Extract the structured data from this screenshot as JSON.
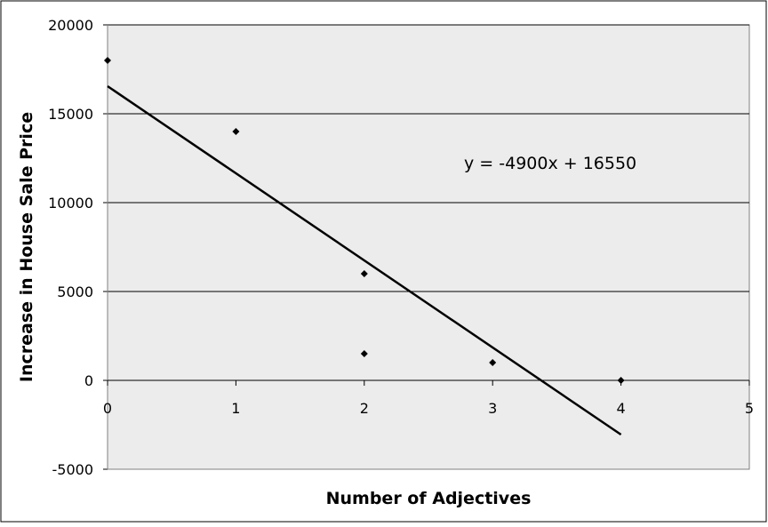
{
  "chart_data": {
    "type": "scatter",
    "title": "",
    "xlabel": "Number of Adjectives",
    "ylabel": "Increase in House Sale Price",
    "xlim": [
      0,
      5
    ],
    "ylim": [
      -5000,
      20000
    ],
    "x_ticks": [
      0,
      1,
      2,
      3,
      4,
      5
    ],
    "y_ticks": [
      -5000,
      0,
      5000,
      10000,
      15000,
      20000
    ],
    "grid": "horizontal",
    "legend": "none",
    "series": [
      {
        "points": [
          {
            "x": 0,
            "y": 18000
          },
          {
            "x": 1,
            "y": 14000
          },
          {
            "x": 2,
            "y": 6000
          },
          {
            "x": 2,
            "y": 1500
          },
          {
            "x": 3,
            "y": 1000
          },
          {
            "x": 4,
            "y": 0
          }
        ]
      }
    ],
    "trendline": {
      "slope": -4900,
      "intercept": 16550,
      "x_range": [
        0,
        4
      ],
      "equation_label": "y = -4900x + 16550"
    },
    "colors": {
      "plot_background": "#ececec",
      "gridline": "#000000",
      "marker": "#000000",
      "trendline": "#000000"
    }
  }
}
